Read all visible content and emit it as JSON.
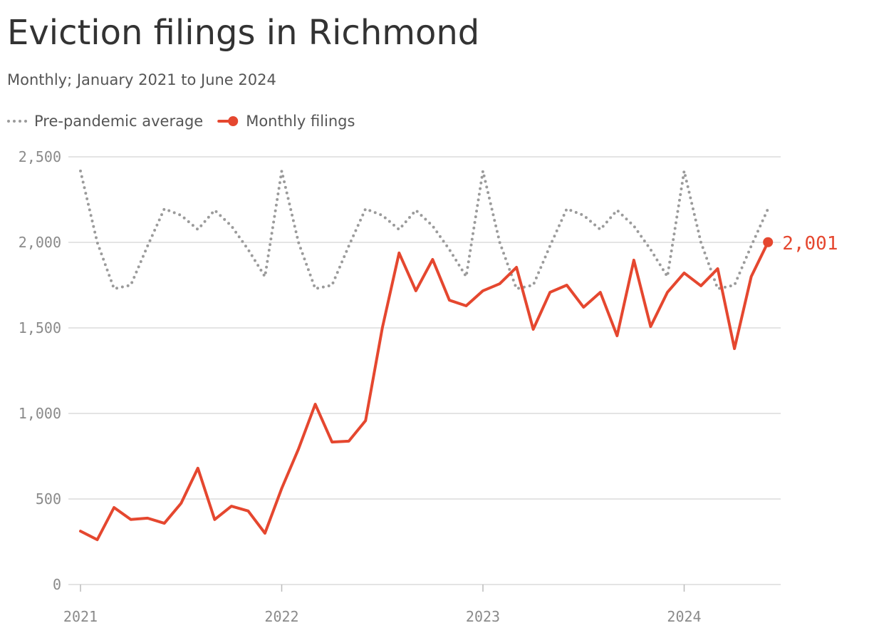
{
  "chart_data": {
    "type": "line",
    "title": "Eviction filings in Richmond",
    "subtitle": "Monthly; January 2021 to June 2024",
    "categories": [
      "2021",
      null,
      null,
      null,
      null,
      null,
      null,
      null,
      null,
      null,
      null,
      null,
      "2022",
      null,
      null,
      null,
      null,
      null,
      null,
      null,
      null,
      null,
      null,
      null,
      "2023",
      null,
      null,
      null,
      null,
      null,
      null,
      null,
      null,
      null,
      null,
      null,
      "2024",
      null,
      null,
      null,
      null,
      null
    ],
    "series": [
      {
        "name": "Pre-pandemic average",
        "color": "#9b9b9b",
        "style": "dotted",
        "values": [
          2417,
          2000,
          1729,
          1750,
          1979,
          2196,
          2158,
          2075,
          2188,
          2096,
          1958,
          1800,
          2417,
          2000,
          1729,
          1750,
          1979,
          2196,
          2158,
          2075,
          2188,
          2096,
          1958,
          1800,
          2417,
          2000,
          1729,
          1750,
          1979,
          2196,
          2158,
          2075,
          2188,
          2096,
          1958,
          1800,
          2417,
          2000,
          1729,
          1750,
          1979,
          2196
        ]
      },
      {
        "name": "Monthly filings",
        "color": "#e5472f",
        "style": "solid",
        "values": [
          312,
          262,
          450,
          380,
          388,
          358,
          475,
          680,
          380,
          458,
          430,
          300,
          562,
          792,
          1054,
          833,
          838,
          958,
          1500,
          1938,
          1717,
          1900,
          1662,
          1629,
          1717,
          1758,
          1854,
          1492,
          1708,
          1750,
          1621,
          1708,
          1454,
          1896,
          1508,
          1708,
          1821,
          1746,
          1846,
          1379,
          1800,
          2001
        ],
        "value_labels": [
          null,
          null,
          null,
          null,
          null,
          null,
          null,
          null,
          null,
          null,
          null,
          null,
          null,
          null,
          null,
          null,
          null,
          null,
          null,
          null,
          null,
          null,
          null,
          null,
          null,
          null,
          null,
          null,
          null,
          null,
          null,
          null,
          null,
          null,
          null,
          null,
          null,
          null,
          null,
          null,
          null,
          "2,001"
        ]
      }
    ],
    "ylim": [
      0,
      2500
    ],
    "yticks": [
      0,
      500,
      {
        "value": 1000,
        "label": "1,000"
      },
      {
        "value": 1500,
        "label": "1,500"
      },
      {
        "value": 2000,
        "label": "2,000"
      },
      {
        "value": 2500,
        "label": "2,500"
      }
    ],
    "grid": true
  }
}
